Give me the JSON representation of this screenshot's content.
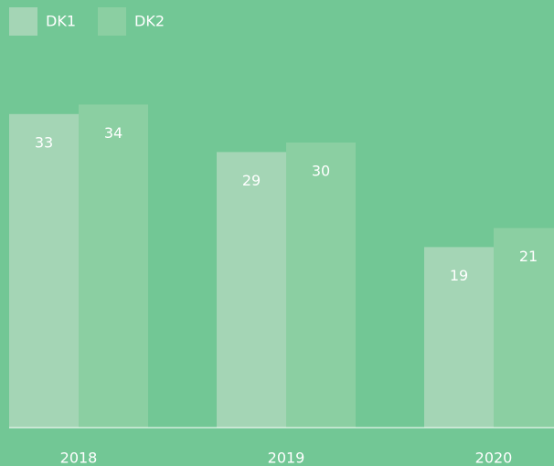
{
  "chart_data": {
    "type": "bar",
    "categories": [
      "2018",
      "2019",
      "2020"
    ],
    "series": [
      {
        "name": "DK1",
        "color": "#a4d5b5",
        "values": [
          33,
          29,
          19
        ]
      },
      {
        "name": "DK2",
        "color": "#8bcfa2",
        "values": [
          34,
          30,
          21
        ]
      }
    ],
    "ylim": [
      0,
      40
    ],
    "legend": "top-left"
  }
}
